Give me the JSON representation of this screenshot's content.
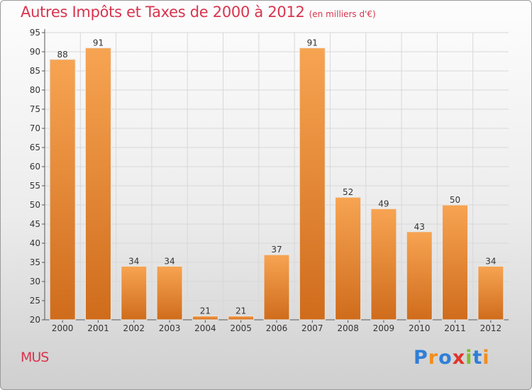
{
  "header": {
    "title": "Autres Impôts et Taxes de 2000 à 2012",
    "subtitle": "(en milliers d'€)"
  },
  "footer": {
    "place": "MUS",
    "brand": "Proxiti"
  },
  "colors": {
    "title": "#d8344e",
    "bar_light": "#f7a452",
    "bar_dark": "#cf6c1c",
    "grid": "#d8d8d8",
    "logo_letters": [
      "#2f7ed8",
      "#f28e1c",
      "#2f7ed8",
      "#e0332b",
      "#7fbf2a",
      "#2f7ed8",
      "#f28e1c"
    ]
  },
  "chart_data": {
    "type": "bar",
    "title": "Autres Impôts et Taxes de 2000 à 2012",
    "subtitle": "(en milliers d'€)",
    "categories": [
      "2000",
      "2001",
      "2002",
      "2003",
      "2004",
      "2005",
      "2006",
      "2007",
      "2008",
      "2009",
      "2010",
      "2011",
      "2012"
    ],
    "values": [
      88,
      91,
      34,
      34,
      21,
      21,
      37,
      91,
      52,
      49,
      43,
      50,
      34
    ],
    "ylim": [
      20,
      95
    ],
    "yticks": [
      20,
      25,
      30,
      35,
      40,
      45,
      50,
      55,
      60,
      65,
      70,
      75,
      80,
      85,
      90,
      95
    ],
    "grid": true,
    "data_labels": true
  }
}
